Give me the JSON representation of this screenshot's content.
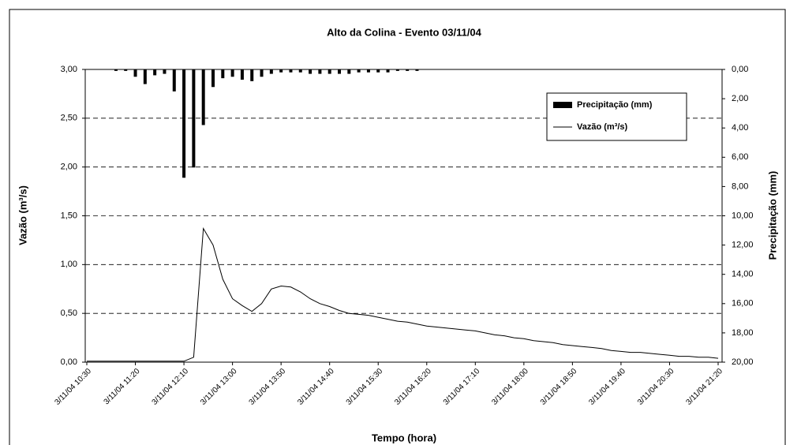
{
  "chart_data": {
    "type": "bar-line",
    "title": "Alto da Colina - Evento 03/11/04",
    "x_label": "Tempo (hora)",
    "y_label": "Vazão (m³/s)",
    "y2_label": "Precipitação (mm)",
    "categories": [
      "3/11/04 10:30",
      null,
      null,
      null,
      null,
      "3/11/04 11:20",
      null,
      null,
      null,
      null,
      "3/11/04 12:10",
      null,
      null,
      null,
      null,
      "3/11/04 13:00",
      null,
      null,
      null,
      null,
      "3/11/04 13:50",
      null,
      null,
      null,
      null,
      "3/11/04 14:40",
      null,
      null,
      null,
      null,
      "3/11/04 15:30",
      null,
      null,
      null,
      null,
      "3/11/04 16:20",
      null,
      null,
      null,
      null,
      "3/11/04 17:10",
      null,
      null,
      null,
      null,
      "3/11/04 18:00",
      null,
      null,
      null,
      null,
      "3/11/04 18:50",
      null,
      null,
      null,
      null,
      "3/11/04 19:40",
      null,
      null,
      null,
      null,
      "3/11/04 20:30",
      null,
      null,
      null,
      null,
      "3/11/04 21:20"
    ],
    "series": [
      {
        "name": "Precipitação (mm)",
        "type": "bar",
        "axis": "y2",
        "color": "#000000",
        "values": [
          0,
          0,
          0,
          0.1,
          0.1,
          0.5,
          1.0,
          0.4,
          0.3,
          1.5,
          7.4,
          6.7,
          3.8,
          1.2,
          0.6,
          0.5,
          0.7,
          0.8,
          0.5,
          0.3,
          0.2,
          0.2,
          0.2,
          0.3,
          0.3,
          0.3,
          0.3,
          0.3,
          0.2,
          0.2,
          0.2,
          0.2,
          0.1,
          0.1,
          0.1,
          0,
          0,
          0,
          0,
          0,
          0,
          0,
          0,
          0,
          0,
          0,
          0,
          0,
          0,
          0,
          0,
          0,
          0,
          0,
          0,
          0,
          0,
          0,
          0,
          0,
          0,
          0,
          0,
          0,
          0,
          0
        ]
      },
      {
        "name": "Vazão (m³/s)",
        "type": "line",
        "color": "#000000",
        "values": [
          0.01,
          0.01,
          0.01,
          0.01,
          0.01,
          0.01,
          0.01,
          0.01,
          0.01,
          0.01,
          0.01,
          0.05,
          1.37,
          1.2,
          0.85,
          0.65,
          0.58,
          0.52,
          0.6,
          0.75,
          0.78,
          0.77,
          0.72,
          0.65,
          0.6,
          0.57,
          0.53,
          0.5,
          0.49,
          0.48,
          0.46,
          0.44,
          0.42,
          0.41,
          0.39,
          0.37,
          0.36,
          0.35,
          0.34,
          0.33,
          0.32,
          0.3,
          0.28,
          0.27,
          0.25,
          0.24,
          0.22,
          0.21,
          0.2,
          0.18,
          0.17,
          0.16,
          0.15,
          0.14,
          0.12,
          0.11,
          0.1,
          0.1,
          0.09,
          0.08,
          0.07,
          0.06,
          0.06,
          0.05,
          0.05,
          0.04
        ]
      }
    ],
    "ylim": [
      0,
      3
    ],
    "yticks": [
      {
        "value": 0,
        "label": "0,00"
      },
      {
        "value": 0.5,
        "label": "0,50"
      },
      {
        "value": 1,
        "label": "1,00"
      },
      {
        "value": 1.5,
        "label": "1,50"
      },
      {
        "value": 2,
        "label": "2,00"
      },
      {
        "value": 2.5,
        "label": "2,50"
      },
      {
        "value": 3,
        "label": "3,00"
      }
    ],
    "y2lim": [
      20,
      0
    ],
    "y2ticks": [
      {
        "value": 0,
        "label": "0,00"
      },
      {
        "value": 2,
        "label": "2,00"
      },
      {
        "value": 4,
        "label": "4,00"
      },
      {
        "value": 6,
        "label": "6,00"
      },
      {
        "value": 8,
        "label": "8,00"
      },
      {
        "value": 10,
        "label": "10,00"
      },
      {
        "value": 12,
        "label": "12,00"
      },
      {
        "value": 14,
        "label": "14,00"
      },
      {
        "value": 16,
        "label": "16,00"
      },
      {
        "value": 18,
        "label": "18,00"
      },
      {
        "value": 20,
        "label": "20,00"
      }
    ],
    "grid": true,
    "legend": "upper right"
  }
}
